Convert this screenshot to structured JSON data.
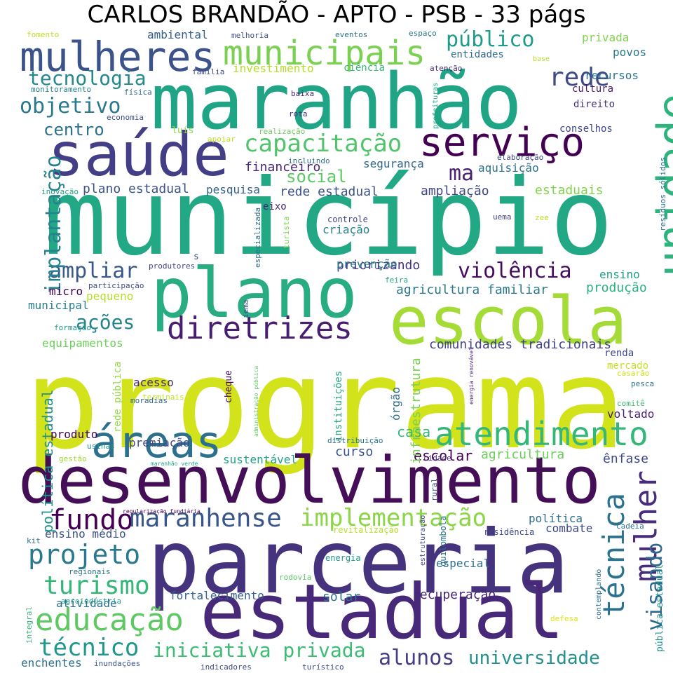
{
  "title": "CARLOS BRANDÃO - APTO - PSB - 33 págs",
  "words": [
    {
      "t": "programa",
      "c": "#d2e21b"
    },
    {
      "t": "município",
      "c": "#22a884"
    },
    {
      "t": "desenvolvimento",
      "c": "#440f56"
    },
    {
      "t": "parceria",
      "c": "#46337e"
    },
    {
      "t": "estadual",
      "c": "#482878"
    },
    {
      "t": "maranhão",
      "c": "#20a486"
    },
    {
      "t": "escola",
      "c": "#a5db36"
    },
    {
      "t": "plano",
      "c": "#27ad81"
    },
    {
      "t": "saúde",
      "c": "#433e85"
    },
    {
      "t": "áreas",
      "c": "#2d708e"
    },
    {
      "t": "mulheres",
      "c": "#3b528b"
    },
    {
      "t": "unidade",
      "c": "#2eb37c"
    },
    {
      "t": "municipais",
      "c": "#7ad151"
    },
    {
      "t": "serviço",
      "c": "#440154"
    },
    {
      "t": "atendimento",
      "c": "#35b779"
    },
    {
      "t": "diretrizes",
      "c": "#481f70"
    },
    {
      "t": "educação",
      "c": "#5ec962"
    },
    {
      "t": "técnica",
      "c": "#2c728e"
    },
    {
      "t": "mulher",
      "c": "#472d7b"
    },
    {
      "t": "capacitação",
      "c": "#50c46a"
    },
    {
      "t": "fundo",
      "c": "#440154"
    },
    {
      "t": "maranhense",
      "c": "#39568c"
    },
    {
      "t": "implementação",
      "c": "#8bd646"
    },
    {
      "t": "projeto",
      "c": "#2a788e"
    },
    {
      "t": "turismo",
      "c": "#35b779"
    },
    {
      "t": "técnico",
      "c": "#1f978b"
    },
    {
      "t": "iniciativa privada",
      "c": "#3dbc74"
    },
    {
      "t": "alunos",
      "c": "#433e85"
    },
    {
      "t": "universidade",
      "c": "#21918c"
    },
    {
      "t": "público",
      "c": "#1e9c89"
    },
    {
      "t": "rede",
      "c": "#3e4a89"
    },
    {
      "t": "tecnologia",
      "c": "#23898e"
    },
    {
      "t": "objetivo",
      "c": "#2a788e"
    },
    {
      "t": "ações",
      "c": "#25858e"
    },
    {
      "t": "violência",
      "c": "#470d60"
    },
    {
      "t": "ampliar",
      "c": "#38588c"
    },
    {
      "t": "implantação",
      "c": "#26828e"
    },
    {
      "t": "visando",
      "c": "#31688e"
    },
    {
      "t": "ma",
      "c": "#482173"
    },
    {
      "t": "social",
      "c": "#5cc863"
    },
    {
      "t": "centro",
      "c": "#2c718e"
    },
    {
      "t": "política estadual",
      "c": "#21918c"
    },
    {
      "t": "comunidades tradicionais",
      "c": "#414487"
    },
    {
      "t": "agricultura familiar",
      "c": "#2a788e"
    },
    {
      "t": "financeiro",
      "c": "#482475"
    },
    {
      "t": "segurança",
      "c": "#31688e"
    },
    {
      "t": "aquisição",
      "c": "#2c728e"
    },
    {
      "t": "plano estadual",
      "c": "#3b528b"
    },
    {
      "t": "pesquisa",
      "c": "#33638d"
    },
    {
      "t": "rede estadual",
      "c": "#3b528b"
    },
    {
      "t": "ampliação",
      "c": "#414487"
    },
    {
      "t": "estaduais",
      "c": "#84d44b"
    },
    {
      "t": "priorizando",
      "c": "#46327e"
    },
    {
      "t": "prevenção",
      "c": "#2a788e"
    },
    {
      "t": "criação",
      "c": "#26828e"
    },
    {
      "t": "ensino",
      "c": "#1f9e89"
    },
    {
      "t": "produção",
      "c": "#2ab07f"
    },
    {
      "t": "equipamentos",
      "c": "#6ccd5a"
    },
    {
      "t": "pequeno",
      "c": "#b5de2b"
    },
    {
      "t": "municipal",
      "c": "#287c8e"
    },
    {
      "t": "micro",
      "c": "#440154"
    },
    {
      "t": "curso",
      "c": "#3b528b"
    },
    {
      "t": "casa",
      "c": "#35b779"
    },
    {
      "t": "escolar",
      "c": "#440154"
    },
    {
      "t": "agricultura",
      "c": "#6ccd5a"
    },
    {
      "t": "ênfase",
      "c": "#3e4989"
    },
    {
      "t": "sustentável",
      "c": "#1fa287"
    },
    {
      "t": "premiação",
      "c": "#3e4989"
    },
    {
      "t": "produto",
      "c": "#440154"
    },
    {
      "t": "acesso",
      "c": "#482878"
    },
    {
      "t": "ensino médio",
      "c": "#3b528b"
    },
    {
      "t": "combate",
      "c": "#3e4989"
    },
    {
      "t": "especial",
      "c": "#2f6c8e"
    },
    {
      "t": "fortalecimento",
      "c": "#355f8d"
    },
    {
      "t": "solar",
      "c": "#2c728e"
    },
    {
      "t": "recuperação",
      "c": "#482677"
    },
    {
      "t": "atividade",
      "c": "#2e6e8e"
    },
    {
      "t": "enchentes",
      "c": "#2d708e"
    },
    {
      "t": "infraestrutura",
      "c": "#7ad151"
    },
    {
      "t": "instituições",
      "c": "#23a983"
    },
    {
      "t": "órgão",
      "c": "#2e6f8e"
    },
    {
      "t": "renda",
      "c": "#3e4a89"
    },
    {
      "t": "mercado",
      "c": "#c8e020"
    },
    {
      "t": "voltado",
      "c": "#482173"
    },
    {
      "t": "cultura",
      "c": "#481769"
    },
    {
      "t": "direito",
      "c": "#46337e"
    },
    {
      "t": "conselhos",
      "c": "#3f4889"
    },
    {
      "t": "recursos",
      "c": "#2a788e"
    },
    {
      "t": "privada",
      "c": "#7fd34e"
    },
    {
      "t": "povos",
      "c": "#2a788e"
    },
    {
      "t": "investimento",
      "c": "#b5de2b"
    },
    {
      "t": "ciência",
      "c": "#35b779"
    },
    {
      "t": "ambiental",
      "c": "#355f8d"
    },
    {
      "t": "entidades",
      "c": "#31688e"
    },
    {
      "t": "eixo",
      "c": "#482576"
    },
    {
      "t": "controle",
      "c": "#414487"
    },
    {
      "t": "residência",
      "c": "#3e4989"
    },
    {
      "t": "quilombola",
      "c": "#2c728e"
    },
    {
      "t": "energia",
      "c": "#1f988b"
    },
    {
      "t": "rede pública",
      "c": "#90d743"
    },
    {
      "t": "política",
      "c": "#2e6e8e"
    },
    {
      "t": "fomento",
      "c": "#c2df23"
    },
    {
      "t": "melhoria",
      "c": "#3b528b"
    },
    {
      "t": "eventos",
      "c": "#2c728e"
    },
    {
      "t": "espaço",
      "c": "#2a788e"
    },
    {
      "t": "família",
      "c": "#3e4a89"
    },
    {
      "t": "monitoramento",
      "c": "#26828e"
    },
    {
      "t": "física",
      "c": "#31688e"
    },
    {
      "t": "economia",
      "c": "#3b528b"
    },
    {
      "t": "baixa",
      "c": "#482878"
    },
    {
      "t": "rota",
      "c": "#472f7d"
    },
    {
      "t": "luís",
      "c": "#8bd646"
    },
    {
      "t": "apoiar",
      "c": "#bddf26"
    },
    {
      "t": "realização",
      "c": "#6ccd5a"
    },
    {
      "t": "incluindo",
      "c": "#2d708e"
    },
    {
      "t": "prefeituras",
      "c": "#22a884"
    },
    {
      "t": "atenção",
      "c": "#482475"
    },
    {
      "t": "base",
      "c": "#b5de2b"
    },
    {
      "t": "elaboração",
      "c": "#3e4989"
    },
    {
      "t": "inovação",
      "c": "#20a386"
    },
    {
      "t": "resíduos sólidos",
      "c": "#2c728e"
    },
    {
      "t": "uema",
      "c": "#414487"
    },
    {
      "t": "zee",
      "c": "#b8de29"
    },
    {
      "t": "turista",
      "c": "#7ad151"
    },
    {
      "t": "especializada",
      "c": "#2c728e"
    },
    {
      "t": "s",
      "c": "#3b528b"
    },
    {
      "t": "produtores",
      "c": "#414487"
    },
    {
      "t": "participação",
      "c": "#3e4989"
    },
    {
      "t": "feira",
      "c": "#22a884"
    },
    {
      "t": "iema",
      "c": "#3b528b"
    },
    {
      "t": "formação",
      "c": "#1f988b"
    },
    {
      "t": "terminais",
      "c": "#c2df23"
    },
    {
      "t": "moradias",
      "c": "#31688e"
    },
    {
      "t": "cheque",
      "c": "#440154"
    },
    {
      "t": "administração pública",
      "c": "#5ec962"
    },
    {
      "t": "energia renovável",
      "c": "#482475"
    },
    {
      "t": "casarão",
      "c": "#cde11d"
    },
    {
      "t": "pesca",
      "c": "#2d708e"
    },
    {
      "t": "comitê",
      "c": "#3dbc74"
    },
    {
      "t": "usinas",
      "c": "#21918c"
    },
    {
      "t": "gestão",
      "c": "#a0da39"
    },
    {
      "t": "distribuição",
      "c": "#2c728e"
    },
    {
      "t": "cidade",
      "c": "#482878"
    },
    {
      "t": "maranhão verde",
      "c": "#20a486"
    },
    {
      "t": "regularização fundiária",
      "c": "#440154"
    },
    {
      "t": "kit",
      "c": "#2d708e"
    },
    {
      "t": "revitalização",
      "c": "#b8de29"
    },
    {
      "t": "rural",
      "c": "#3e4a89"
    },
    {
      "t": "cadeia",
      "c": "#2c728e"
    },
    {
      "t": "estruturação",
      "c": "#414487"
    },
    {
      "t": "regionais",
      "c": "#2c728e"
    },
    {
      "t": "rodovia",
      "c": "#5ec962"
    },
    {
      "t": "agroindústria",
      "c": "#1f9e89"
    },
    {
      "t": "integral",
      "c": "#35b779"
    },
    {
      "t": "defesa",
      "c": "#e2e418"
    },
    {
      "t": "contemplando",
      "c": "#2c728e"
    },
    {
      "t": "pública estadual",
      "c": "#21918c"
    },
    {
      "t": "inundações",
      "c": "#3b528b"
    },
    {
      "t": "indicadores",
      "c": "#3e4989"
    },
    {
      "t": "turístico",
      "c": "#3e4a89"
    }
  ]
}
